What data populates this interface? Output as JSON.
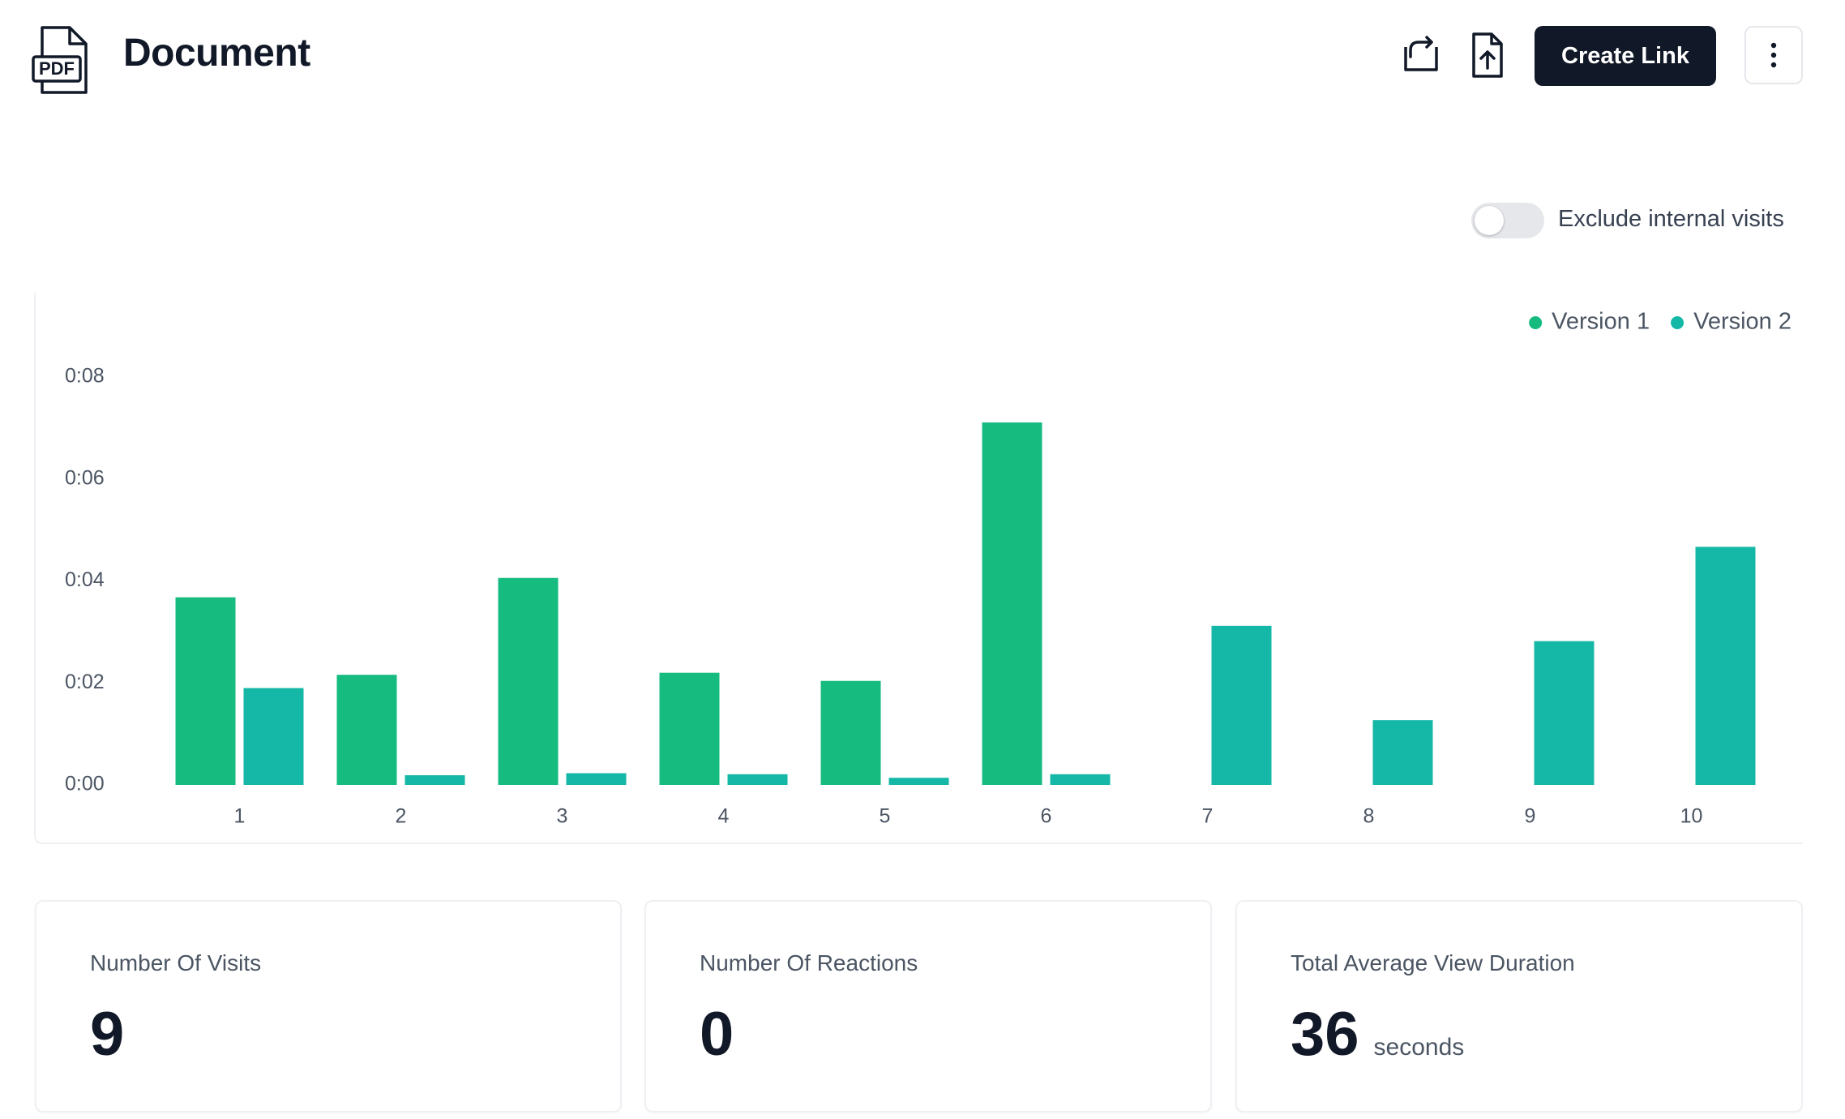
{
  "header": {
    "icon_text": "PDF",
    "title": "Document",
    "button": "Create Link"
  },
  "toggle": {
    "label": "Exclude internal visits",
    "checked": false
  },
  "chart_data": {
    "type": "bar",
    "categories": [
      "1",
      "2",
      "3",
      "4",
      "5",
      "6",
      "7",
      "8",
      "9",
      "10"
    ],
    "series": [
      {
        "name": "Version 1",
        "color": "#16bb80",
        "values": [
          3.68,
          2.16,
          4.06,
          2.2,
          2.04,
          7.11,
          null,
          null,
          null,
          null
        ]
      },
      {
        "name": "Version 2",
        "color": "#15b8a6",
        "values": [
          1.9,
          0.19,
          0.23,
          0.21,
          0.14,
          0.21,
          3.12,
          1.27,
          2.82,
          4.67
        ]
      }
    ],
    "ylim": [
      0,
      8
    ],
    "yticks": [
      {
        "value": 0,
        "label": "0:00"
      },
      {
        "value": 2,
        "label": "0:02"
      },
      {
        "value": 4,
        "label": "0:04"
      },
      {
        "value": 6,
        "label": "0:06"
      },
      {
        "value": 8,
        "label": "0:08"
      }
    ],
    "grid": false,
    "legend": "top-right"
  },
  "stats": [
    {
      "label": "Number Of Visits",
      "value": "9"
    },
    {
      "label": "Number Of Reactions",
      "value": "0"
    },
    {
      "label": "Total Average View Duration",
      "value": "36",
      "unit": "seconds"
    }
  ]
}
